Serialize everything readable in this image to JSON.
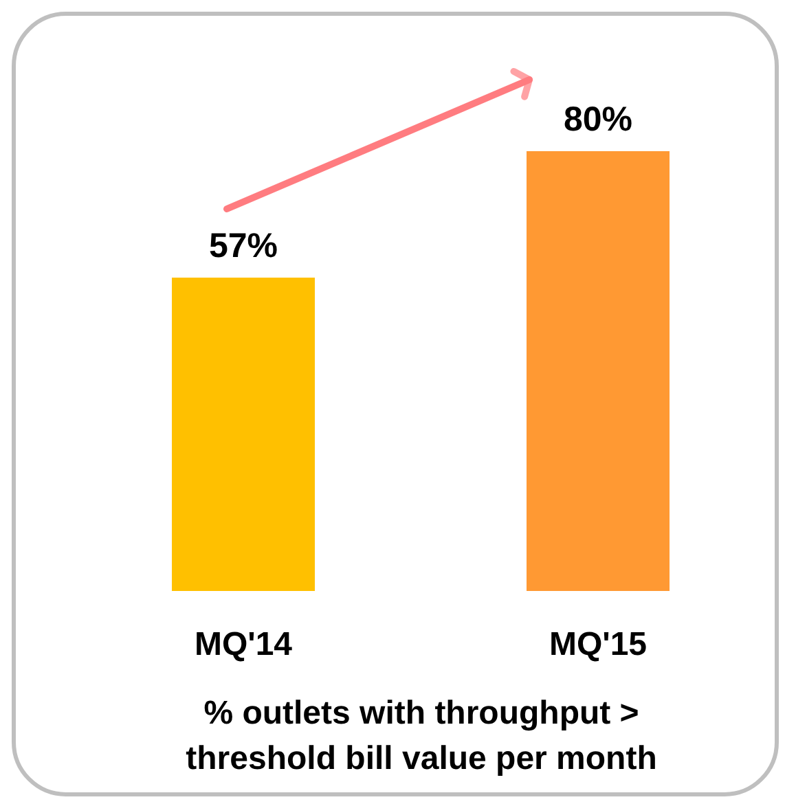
{
  "chart_data": {
    "type": "bar",
    "categories": [
      "MQ'14",
      "MQ'15"
    ],
    "values": [
      57,
      80
    ],
    "colors": [
      "#ffc000",
      "#ff9933"
    ],
    "value_labels": [
      "57%",
      "80%"
    ],
    "xlabel": "% outlets with throughput > threshold bill value per month"
  }
}
